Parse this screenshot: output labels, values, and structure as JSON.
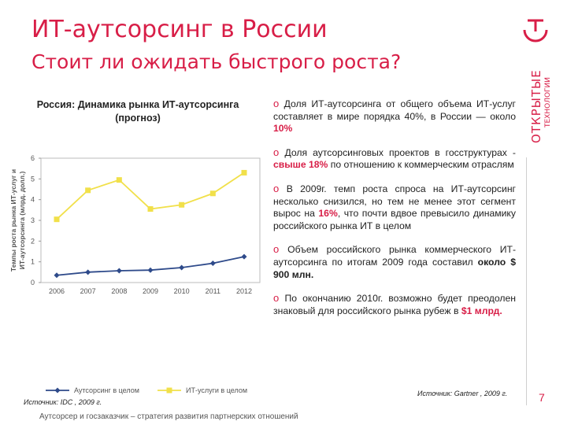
{
  "header": {
    "title": "ИТ-аутсорсинг в России",
    "subtitle": "Стоит ли ожидать быстрого роста?"
  },
  "logo": {
    "icon": "open-technologies-logo-icon",
    "line1": "ОТКРЫТЫЕ",
    "line2": "ТЕХНОЛОГИИ",
    "color": "#d81e47"
  },
  "chart_title": {
    "line1": "Россия: Динамика рынка ИТ-аутсорсинга",
    "line2": "(прогноз)"
  },
  "chart_data": {
    "type": "line",
    "x": [
      "2006",
      "2007",
      "2008",
      "2009",
      "2010",
      "2011",
      "2012"
    ],
    "ylabel_line1": "Темпы роста рынка ИТ-услуг и",
    "ylabel_line2": "ИТ-аутсорсинга (млрд. долл.)",
    "ylim": [
      0,
      6
    ],
    "yticks": [
      "0",
      "1",
      "2",
      "3",
      "4",
      "5",
      "6"
    ],
    "grid": false,
    "legend_position": "bottom",
    "series": [
      {
        "name": "Аутсорсинг в целом",
        "color": "#2e4a8a",
        "marker": "diamond",
        "values": [
          0.35,
          0.5,
          0.57,
          0.6,
          0.72,
          0.93,
          1.25
        ]
      },
      {
        "name": "ИТ-услуги в целом",
        "color": "#f1e04a",
        "marker": "square",
        "values": [
          3.05,
          4.45,
          4.95,
          3.55,
          3.75,
          4.3,
          5.3
        ]
      }
    ]
  },
  "bullets": [
    {
      "text": "Доля ИТ-аутсорсинга от общего объема ИТ-услуг составляет в мире порядка 40%, в России — около ",
      "highlight": "10%",
      "suffix": ""
    },
    {
      "text": "Доля аутсорсинговых проектов в госструктурах - ",
      "highlight": "свыше 18%",
      "suffix": " по отношению к коммерческим отраслям"
    },
    {
      "text": "В 2009г. темп роста спроса на ИТ-аутсорсинг несколько снизился, но тем не менее этот сегмент вырос на ",
      "highlight": "16%",
      "suffix": ", что почти вдвое превысило динамику российского рынка ИТ в целом"
    },
    {
      "text": "Объем российского рынка коммерческого ИТ-аутсорсинга по итогам 2009 года составил ",
      "bold": "около $ 900 млн.",
      "suffix": ""
    },
    {
      "text": "По окончанию 2010г. возможно будет преодолен знаковый для российского рынка рубеж в ",
      "highlight": "$1 млрд.",
      "suffix": ""
    }
  ],
  "bullet_marker": "o",
  "source_left": "Источник: IDC , 2009 г.",
  "source_right": "Источник: Gartner , 2009 г.",
  "footer": "Аутсорсер и госзаказчик – стратегия развития партнерских отношений",
  "page_number": "7"
}
